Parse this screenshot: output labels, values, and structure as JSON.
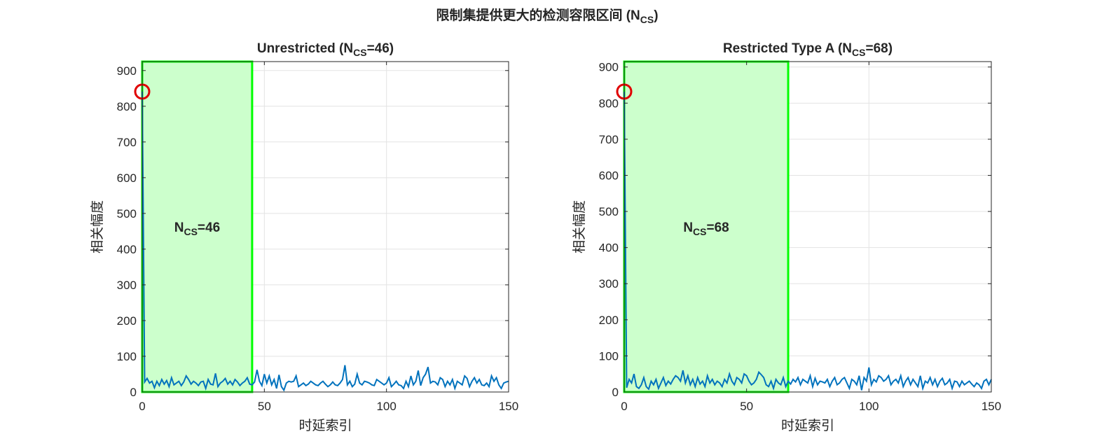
{
  "title": {
    "main": "限制集提供更大的检测容限区间 (N",
    "sub": "CS",
    "tail": ")"
  },
  "chart_data": [
    {
      "type": "line",
      "title": {
        "main": "Unrestricted  (N",
        "sub": "CS",
        "tail": "=46)"
      },
      "xlabel": "时延索引",
      "ylabel": "相关幅度",
      "xlim": [
        0,
        150
      ],
      "ylim": [
        0,
        925
      ],
      "xticks": [
        0,
        50,
        100,
        150
      ],
      "yticks": [
        0,
        100,
        200,
        300,
        400,
        500,
        600,
        700,
        800,
        900
      ],
      "grid": true,
      "highlight": {
        "x": [
          0,
          45
        ],
        "fill": "#ccffcc",
        "edge": "#00ff00",
        "label": {
          "main": "N",
          "sub": "CS",
          "tail": "=46"
        }
      },
      "marker": {
        "x": 0,
        "y": 841,
        "color": "#e00000"
      },
      "x": [
        0,
        1,
        2,
        3,
        4,
        5,
        6,
        7,
        8,
        9,
        10,
        11,
        12,
        13,
        14,
        15,
        16,
        17,
        18,
        19,
        20,
        21,
        22,
        23,
        24,
        25,
        26,
        27,
        28,
        29,
        30,
        31,
        32,
        33,
        34,
        35,
        36,
        37,
        38,
        39,
        40,
        41,
        42,
        43,
        44,
        45,
        46,
        47,
        48,
        49,
        50,
        51,
        52,
        53,
        54,
        55,
        56,
        57,
        58,
        59,
        60,
        61,
        62,
        63,
        64,
        65,
        66,
        67,
        68,
        69,
        70,
        71,
        72,
        73,
        74,
        75,
        76,
        77,
        78,
        79,
        80,
        81,
        82,
        83,
        84,
        85,
        86,
        87,
        88,
        89,
        90,
        91,
        92,
        93,
        94,
        95,
        96,
        97,
        98,
        99,
        100,
        101,
        102,
        103,
        104,
        105,
        106,
        107,
        108,
        109,
        110,
        111,
        112,
        113,
        114,
        115,
        116,
        117,
        118,
        119,
        120,
        121,
        122,
        123,
        124,
        125,
        126,
        127,
        128,
        129,
        130,
        131,
        132,
        133,
        134,
        135,
        136,
        137,
        138,
        139,
        140,
        141,
        142,
        143,
        144,
        145,
        146,
        147,
        148,
        149,
        150
      ],
      "series": [
        {
          "color": "#0072bd",
          "values": [
            841,
            28,
            38,
            25,
            30,
            12,
            30,
            18,
            35,
            22,
            32,
            15,
            40,
            20,
            25,
            30,
            18,
            28,
            45,
            35,
            22,
            30,
            25,
            18,
            28,
            30,
            10,
            35,
            22,
            20,
            52,
            15,
            25,
            30,
            38,
            22,
            30,
            20,
            35,
            28,
            18,
            25,
            30,
            40,
            22,
            20,
            28,
            62,
            30,
            18,
            50,
            25,
            45,
            20,
            35,
            10,
            48,
            15,
            5,
            25,
            30,
            28,
            30,
            45,
            15,
            20,
            25,
            18,
            22,
            30,
            25,
            20,
            18,
            25,
            30,
            22,
            15,
            20,
            28,
            20,
            18,
            25,
            35,
            75,
            20,
            30,
            15,
            22,
            50,
            25,
            20,
            30,
            28,
            25,
            20,
            18,
            35,
            30,
            25,
            20,
            25,
            40,
            15,
            22,
            30,
            20,
            18,
            10,
            30,
            15,
            45,
            20,
            30,
            60,
            18,
            40,
            50,
            70,
            25,
            30,
            28,
            20,
            40,
            35,
            15,
            30,
            20,
            35,
            10,
            30,
            25,
            20,
            45,
            38,
            15,
            30,
            40,
            25,
            35,
            20,
            18,
            25,
            15,
            45,
            30,
            40,
            20,
            10,
            25,
            28,
            30
          ]
        }
      ]
    },
    {
      "type": "line",
      "title": {
        "main": "Restricted  Type  A  (N",
        "sub": "CS",
        "tail": "=68)"
      },
      "xlabel": "时延索引",
      "ylabel": "相关幅度",
      "xlim": [
        0,
        150
      ],
      "ylim": [
        0,
        915
      ],
      "xticks": [
        0,
        50,
        100,
        150
      ],
      "yticks": [
        0,
        100,
        200,
        300,
        400,
        500,
        600,
        700,
        800,
        900
      ],
      "grid": true,
      "highlight": {
        "x": [
          0,
          67
        ],
        "fill": "#ccffcc",
        "edge": "#00ff00",
        "label": {
          "main": "N",
          "sub": "CS",
          "tail": "=68"
        }
      },
      "marker": {
        "x": 0,
        "y": 832,
        "color": "#e00000"
      },
      "x": [
        0,
        1,
        2,
        3,
        4,
        5,
        6,
        7,
        8,
        9,
        10,
        11,
        12,
        13,
        14,
        15,
        16,
        17,
        18,
        19,
        20,
        21,
        22,
        23,
        24,
        25,
        26,
        27,
        28,
        29,
        30,
        31,
        32,
        33,
        34,
        35,
        36,
        37,
        38,
        39,
        40,
        41,
        42,
        43,
        44,
        45,
        46,
        47,
        48,
        49,
        50,
        51,
        52,
        53,
        54,
        55,
        56,
        57,
        58,
        59,
        60,
        61,
        62,
        63,
        64,
        65,
        66,
        67,
        68,
        69,
        70,
        71,
        72,
        73,
        74,
        75,
        76,
        77,
        78,
        79,
        80,
        81,
        82,
        83,
        84,
        85,
        86,
        87,
        88,
        89,
        90,
        91,
        92,
        93,
        94,
        95,
        96,
        97,
        98,
        99,
        100,
        101,
        102,
        103,
        104,
        105,
        106,
        107,
        108,
        109,
        110,
        111,
        112,
        113,
        114,
        115,
        116,
        117,
        118,
        119,
        120,
        121,
        122,
        123,
        124,
        125,
        126,
        127,
        128,
        129,
        130,
        131,
        132,
        133,
        134,
        135,
        136,
        137,
        138,
        139,
        140,
        141,
        142,
        143,
        144,
        145,
        146,
        147,
        148,
        149,
        150
      ],
      "series": [
        {
          "color": "#0072bd",
          "values": [
            832,
            12,
            35,
            25,
            50,
            15,
            10,
            20,
            40,
            15,
            8,
            30,
            20,
            35,
            10,
            25,
            40,
            18,
            30,
            22,
            35,
            45,
            40,
            30,
            60,
            25,
            45,
            20,
            35,
            15,
            40,
            22,
            30,
            15,
            45,
            25,
            35,
            20,
            30,
            25,
            15,
            35,
            25,
            50,
            30,
            20,
            40,
            35,
            25,
            50,
            45,
            30,
            20,
            25,
            35,
            55,
            48,
            40,
            20,
            15,
            30,
            10,
            35,
            25,
            20,
            40,
            15,
            30,
            22,
            35,
            28,
            40,
            20,
            35,
            30,
            25,
            45,
            15,
            38,
            20,
            30,
            28,
            25,
            35,
            15,
            30,
            40,
            20,
            25,
            35,
            40,
            25,
            10,
            35,
            30,
            20,
            45,
            5,
            40,
            30,
            68,
            20,
            35,
            28,
            45,
            40,
            30,
            35,
            45,
            20,
            30,
            35,
            25,
            45,
            15,
            30,
            40,
            20,
            35,
            25,
            15,
            45,
            10,
            30,
            25,
            40,
            20,
            35,
            15,
            30,
            38,
            20,
            25,
            35,
            10,
            30,
            28,
            15,
            30,
            20,
            25,
            30,
            22,
            15,
            25,
            20,
            10,
            30,
            35,
            20,
            35
          ]
        }
      ]
    }
  ]
}
